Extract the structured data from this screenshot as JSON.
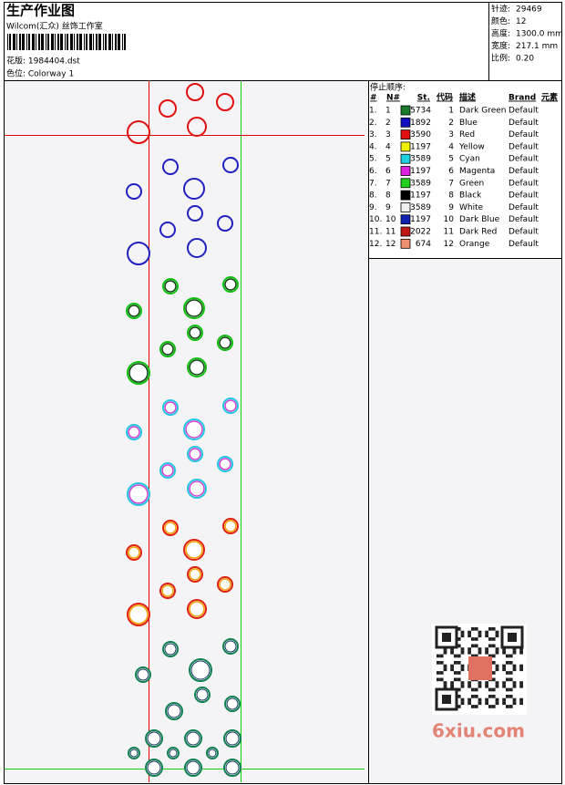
{
  "header": {
    "title": "生产作业图",
    "company": "Wilcom(汇众) 丝饰工作室",
    "design": "花版:  1984404.dst",
    "colorway": "色位:  Colorway 1"
  },
  "stats": [
    {
      "label": "针迹:",
      "value": "29469"
    },
    {
      "label": "颜色:",
      "value": "12"
    },
    {
      "label": "高度:",
      "value": "1300.0 mm"
    },
    {
      "label": "宽度:",
      "value": "217.1 mm"
    },
    {
      "label": "比例:",
      "value": "0.20"
    }
  ],
  "stop_sequence": {
    "title": "停止顺序:",
    "columns": [
      "#",
      "N#",
      "St.",
      "代码",
      "描述",
      "Brand",
      "元素"
    ],
    "rows": [
      {
        "index": "1.",
        "n": "1",
        "color": "#1a7a2a",
        "stitches": "5734",
        "code": "1",
        "description": "Dark Green",
        "brand": "Default"
      },
      {
        "index": "2.",
        "n": "2",
        "color": "#1010c0",
        "stitches": "1892",
        "code": "2",
        "description": "Blue",
        "brand": "Default"
      },
      {
        "index": "3.",
        "n": "3",
        "color": "#e01010",
        "stitches": "3590",
        "code": "3",
        "description": "Red",
        "brand": "Default"
      },
      {
        "index": "4.",
        "n": "4",
        "color": "#f0f000",
        "stitches": "1197",
        "code": "4",
        "description": "Yellow",
        "brand": "Default"
      },
      {
        "index": "5.",
        "n": "5",
        "color": "#20d0e0",
        "stitches": "3589",
        "code": "5",
        "description": "Cyan",
        "brand": "Default"
      },
      {
        "index": "6.",
        "n": "6",
        "color": "#e020e0",
        "stitches": "1197",
        "code": "6",
        "description": "Magenta",
        "brand": "Default"
      },
      {
        "index": "7.",
        "n": "7",
        "color": "#20d020",
        "stitches": "3589",
        "code": "7",
        "description": "Green",
        "brand": "Default"
      },
      {
        "index": "8.",
        "n": "8",
        "color": "#000000",
        "stitches": "1197",
        "code": "8",
        "description": "Black",
        "brand": "Default"
      },
      {
        "index": "9.",
        "n": "9",
        "color": "#f0f0f0",
        "stitches": "3589",
        "code": "9",
        "description": "White",
        "brand": "Default"
      },
      {
        "index": "10.",
        "n": "10",
        "color": "#1020b0",
        "stitches": "1197",
        "code": "10",
        "description": "Dark Blue",
        "brand": "Default"
      },
      {
        "index": "11.",
        "n": "11",
        "color": "#c01818",
        "stitches": "2022",
        "code": "11",
        "description": "Dark Red",
        "brand": "Default"
      },
      {
        "index": "12.",
        "n": "12",
        "color": "#f09070",
        "stitches": "674",
        "code": "12",
        "description": "Orange",
        "brand": "Default"
      }
    ]
  },
  "watermark": "6xiu.com"
}
